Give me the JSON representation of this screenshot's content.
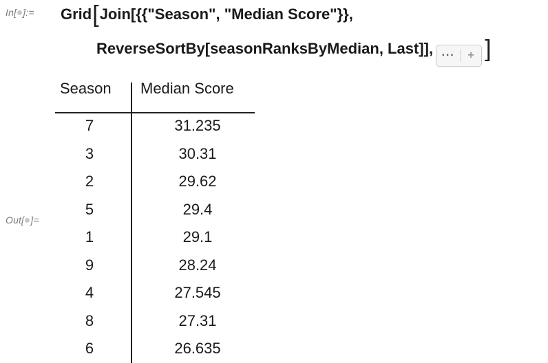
{
  "notebook": {
    "in_label_prefix": "In[",
    "in_label_suffix": "]:=",
    "out_label_prefix": "Out[",
    "out_label_suffix": "]=",
    "code_line_1_a": "Grid",
    "code_line_1_b": "Join[{{\"Season\", \"Median Score\"}},",
    "code_line_2": "ReverseSortBy[seasonRanksByMedian, Last]],",
    "open_bracket": "[",
    "close_bracket": "]",
    "iconized_ellipsis": "···",
    "iconized_plus": "+"
  },
  "table": {
    "headers": {
      "season": "Season",
      "median": "Median Score"
    },
    "rows": [
      {
        "season": "7",
        "median": "31.235"
      },
      {
        "season": "3",
        "median": "30.31"
      },
      {
        "season": "2",
        "median": "29.62"
      },
      {
        "season": "5",
        "median": "29.4"
      },
      {
        "season": "1",
        "median": "29.1"
      },
      {
        "season": "9",
        "median": "28.24"
      },
      {
        "season": "4",
        "median": "27.545"
      },
      {
        "season": "8",
        "median": "27.31"
      },
      {
        "season": "6",
        "median": "26.635"
      }
    ]
  }
}
